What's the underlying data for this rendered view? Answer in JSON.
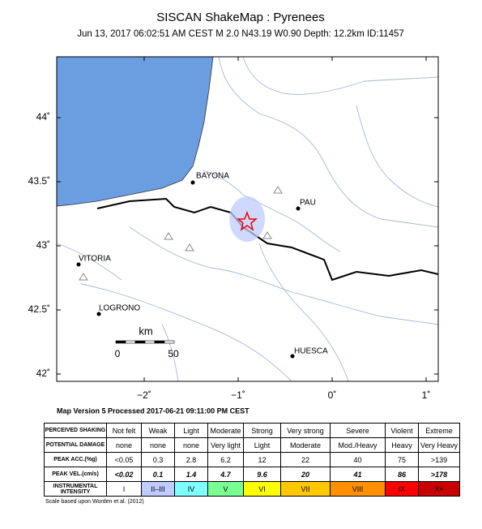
{
  "header": {
    "title": "SISCAN ShakeMap : Pyrenees",
    "subtitle": "Jun 13, 2017 06:02:51 AM CEST   M 2.0   N43.19 W0.90   Depth: 12.2km   ID:11457"
  },
  "map": {
    "lat_ticks": [
      {
        "value": 44,
        "label": "44˚"
      },
      {
        "value": 43.5,
        "label": "43.5˚"
      },
      {
        "value": 43,
        "label": "43˚"
      },
      {
        "value": 42.5,
        "label": "42.5˚"
      },
      {
        "value": 42,
        "label": "42˚"
      }
    ],
    "lon_ticks": [
      {
        "value": -2,
        "label": "−2˚"
      },
      {
        "value": -1,
        "label": "−1˚"
      },
      {
        "value": 0,
        "label": "0˚"
      },
      {
        "value": 1,
        "label": "1˚"
      }
    ],
    "cities": [
      "BAYONA",
      "PAU",
      "VITORIA",
      "LOGRONO",
      "HUESCA"
    ],
    "scale_bar": {
      "unit": "km",
      "start": "0",
      "end": "50"
    },
    "footer": "Map Version 5 Processed 2017-06-21 09:11:00 PM CEST"
  },
  "table": {
    "rows": [
      {
        "label": "PERCEIVED SHAKING",
        "cells": [
          "Not felt",
          "Weak",
          "Light",
          "Moderate",
          "Strong",
          "Very strong",
          "Severe",
          "Violent",
          "Extreme"
        ]
      },
      {
        "label": "POTENTIAL DAMAGE",
        "cells": [
          "none",
          "none",
          "none",
          "Very light",
          "Light",
          "Moderate",
          "Mod./Heavy",
          "Heavy",
          "Very Heavy"
        ]
      },
      {
        "label": "PEAK ACC.(%g)",
        "cells": [
          "<0.05",
          "0.3",
          "2.8",
          "6.2",
          "12",
          "22",
          "40",
          "75",
          ">139"
        ]
      },
      {
        "label": "PEAK VEL.(cm/s)",
        "cells": [
          "<0.02",
          "0.1",
          "1.4",
          "4.7",
          "9.6",
          "20",
          "41",
          "86",
          ">178"
        ]
      },
      {
        "label": "INSTRUMENTAL INTENSITY",
        "cells": [
          "I",
          "II–III",
          "IV",
          "V",
          "VI",
          "VII",
          "VIII",
          "IX",
          "X+"
        ]
      }
    ],
    "intensity_colors": [
      "#ffffff",
      "#bfccff",
      "#80ffff",
      "#7aff93",
      "#ffff00",
      "#ffc800",
      "#ff9100",
      "#ff0000",
      "#c80000"
    ],
    "note": "Scale based upon Worden et al. (2012)"
  }
}
